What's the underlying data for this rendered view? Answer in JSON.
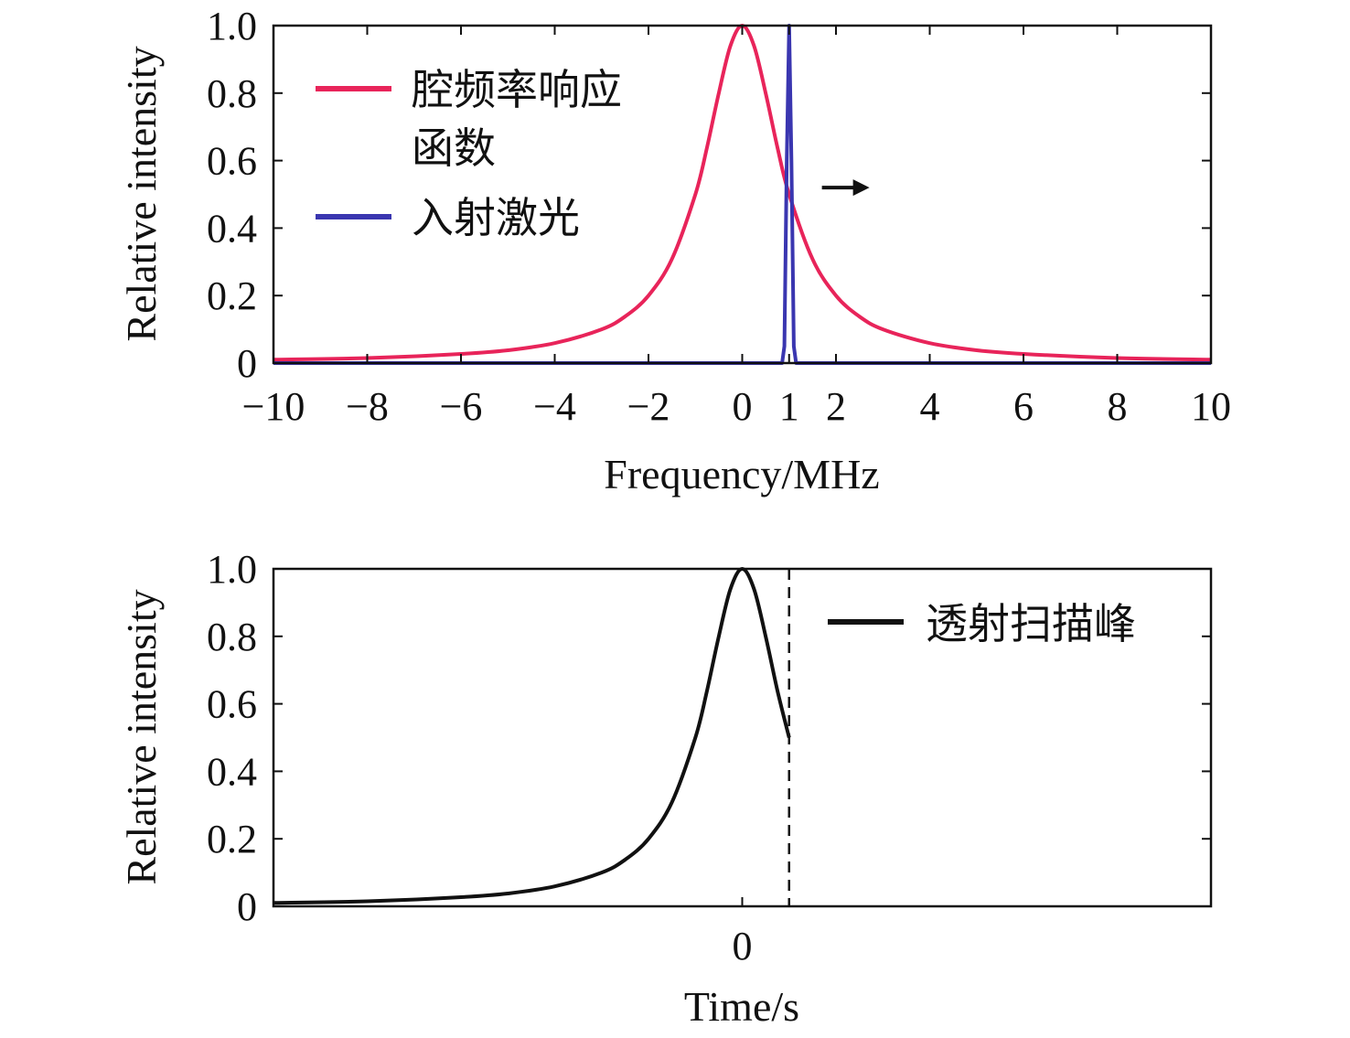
{
  "chart_data": [
    {
      "type": "line",
      "xlabel": "Frequency/MHz",
      "ylabel": "Relative intensity",
      "xlim": [
        -10,
        10
      ],
      "ylim": [
        0,
        1.0
      ],
      "x_ticks": [
        -10,
        -8,
        -6,
        -4,
        -2,
        0,
        1,
        2,
        4,
        6,
        8,
        10
      ],
      "x_tick_labels": [
        "−10",
        "−8",
        "−6",
        "−4",
        "−2",
        "0",
        "1",
        "2",
        "4",
        "6",
        "8",
        "10"
      ],
      "y_ticks": [
        0,
        0.2,
        0.4,
        0.6,
        0.8,
        1.0
      ],
      "y_tick_labels": [
        "0",
        "0.2",
        "0.4",
        "0.6",
        "0.8",
        "1.0"
      ],
      "legend_position": "top-left",
      "series": [
        {
          "name": "腔频率响应函数",
          "color": "#e8245a",
          "x": [
            -10,
            -8,
            -6,
            -5,
            -4,
            -3,
            -2.5,
            -2,
            -1.5,
            -1,
            -0.75,
            -0.5,
            -0.25,
            0,
            0.25,
            0.5,
            0.75,
            1,
            1.5,
            2,
            2.5,
            3,
            4,
            5,
            6,
            8,
            10
          ],
          "y": [
            0.01,
            0.015,
            0.027,
            0.038,
            0.059,
            0.1,
            0.138,
            0.2,
            0.308,
            0.5,
            0.64,
            0.8,
            0.941,
            1.0,
            0.941,
            0.8,
            0.64,
            0.5,
            0.308,
            0.2,
            0.138,
            0.1,
            0.059,
            0.038,
            0.027,
            0.015,
            0.01
          ]
        },
        {
          "name": "入射激光",
          "color": "#3a36b0",
          "x": [
            -10,
            0.85,
            0.9,
            0.95,
            1.0,
            1.05,
            1.1,
            1.15,
            10
          ],
          "y": [
            0,
            0,
            0.05,
            0.6,
            1.0,
            0.6,
            0.05,
            0,
            0
          ]
        }
      ],
      "annotations": [
        {
          "type": "arrow",
          "direction": "right",
          "x": 1.7,
          "y": 0.52
        }
      ]
    },
    {
      "type": "line",
      "xlabel": "Time/s",
      "ylabel": "Relative intensity",
      "ylim": [
        0,
        1.0
      ],
      "x_ticks": [
        0
      ],
      "x_tick_labels": [
        "0"
      ],
      "y_ticks": [
        0,
        0.2,
        0.4,
        0.6,
        0.8,
        1.0
      ],
      "y_tick_labels": [
        "0",
        "0.2",
        "0.4",
        "0.6",
        "0.8",
        "1.0"
      ],
      "legend_position": "top-right",
      "series": [
        {
          "name": "透射扫描峰",
          "color": "#111111",
          "x": [
            -10,
            -8,
            -6,
            -5,
            -4,
            -3,
            -2.5,
            -2,
            -1.5,
            -1,
            -0.75,
            -0.5,
            -0.25,
            0,
            0.25,
            0.5,
            0.75,
            1
          ],
          "y": [
            0.01,
            0.015,
            0.027,
            0.038,
            0.059,
            0.1,
            0.138,
            0.2,
            0.308,
            0.5,
            0.64,
            0.8,
            0.941,
            1.0,
            0.941,
            0.8,
            0.64,
            0.5
          ]
        }
      ],
      "annotations": [
        {
          "type": "vline",
          "style": "dashed",
          "x": 1
        }
      ]
    }
  ]
}
